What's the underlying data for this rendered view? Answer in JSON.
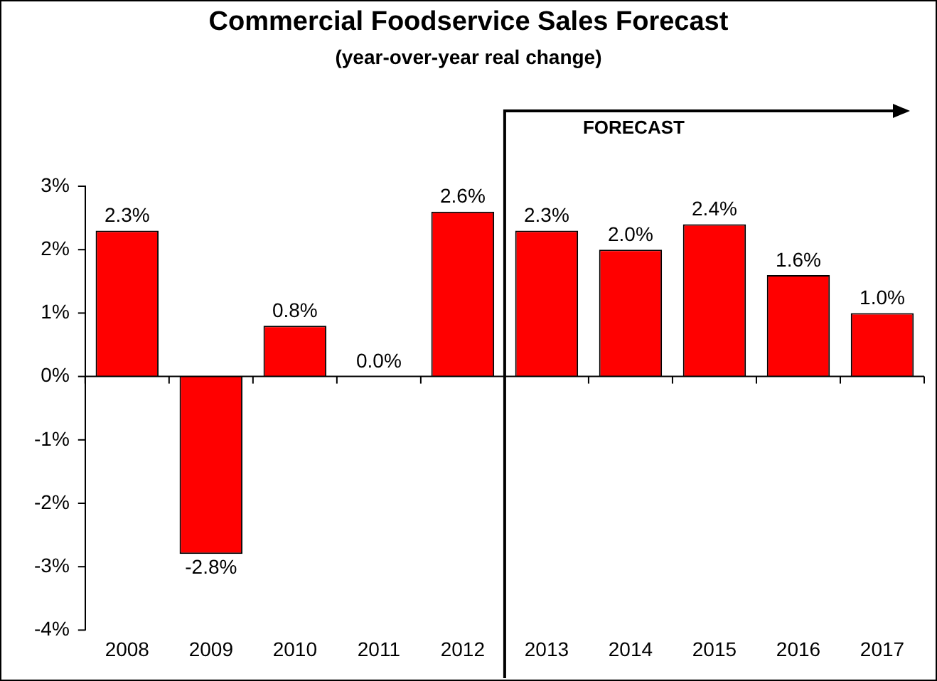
{
  "chart_data": {
    "type": "bar",
    "title": "Commercial Foodservice Sales Forecast",
    "subtitle": "(year-over-year real change)",
    "categories": [
      "2008",
      "2009",
      "2010",
      "2011",
      "2012",
      "2013",
      "2014",
      "2015",
      "2016",
      "2017"
    ],
    "values": [
      2.3,
      -2.8,
      0.8,
      0.0,
      2.6,
      2.3,
      2.0,
      2.4,
      1.6,
      1.0
    ],
    "value_labels": [
      "2.3%",
      "-2.8%",
      "0.8%",
      "0.0%",
      "2.6%",
      "2.3%",
      "2.0%",
      "2.4%",
      "1.6%",
      "1.0%"
    ],
    "color": "#ff0000",
    "ylim": [
      -4,
      3
    ],
    "yticks": [
      {
        "value": -4,
        "label": "-4%"
      },
      {
        "value": -3,
        "label": "-3%"
      },
      {
        "value": -2,
        "label": "-2%"
      },
      {
        "value": -1,
        "label": "-1%"
      },
      {
        "value": 0,
        "label": "0%"
      },
      {
        "value": 1,
        "label": "1%"
      },
      {
        "value": 2,
        "label": "2%"
      },
      {
        "value": 3,
        "label": "3%"
      }
    ],
    "annotations": [
      "FORECAST"
    ],
    "ref_lines": [
      {
        "axis": "y",
        "value": 0,
        "color": "#000000"
      }
    ],
    "grid": false,
    "legend": false
  }
}
